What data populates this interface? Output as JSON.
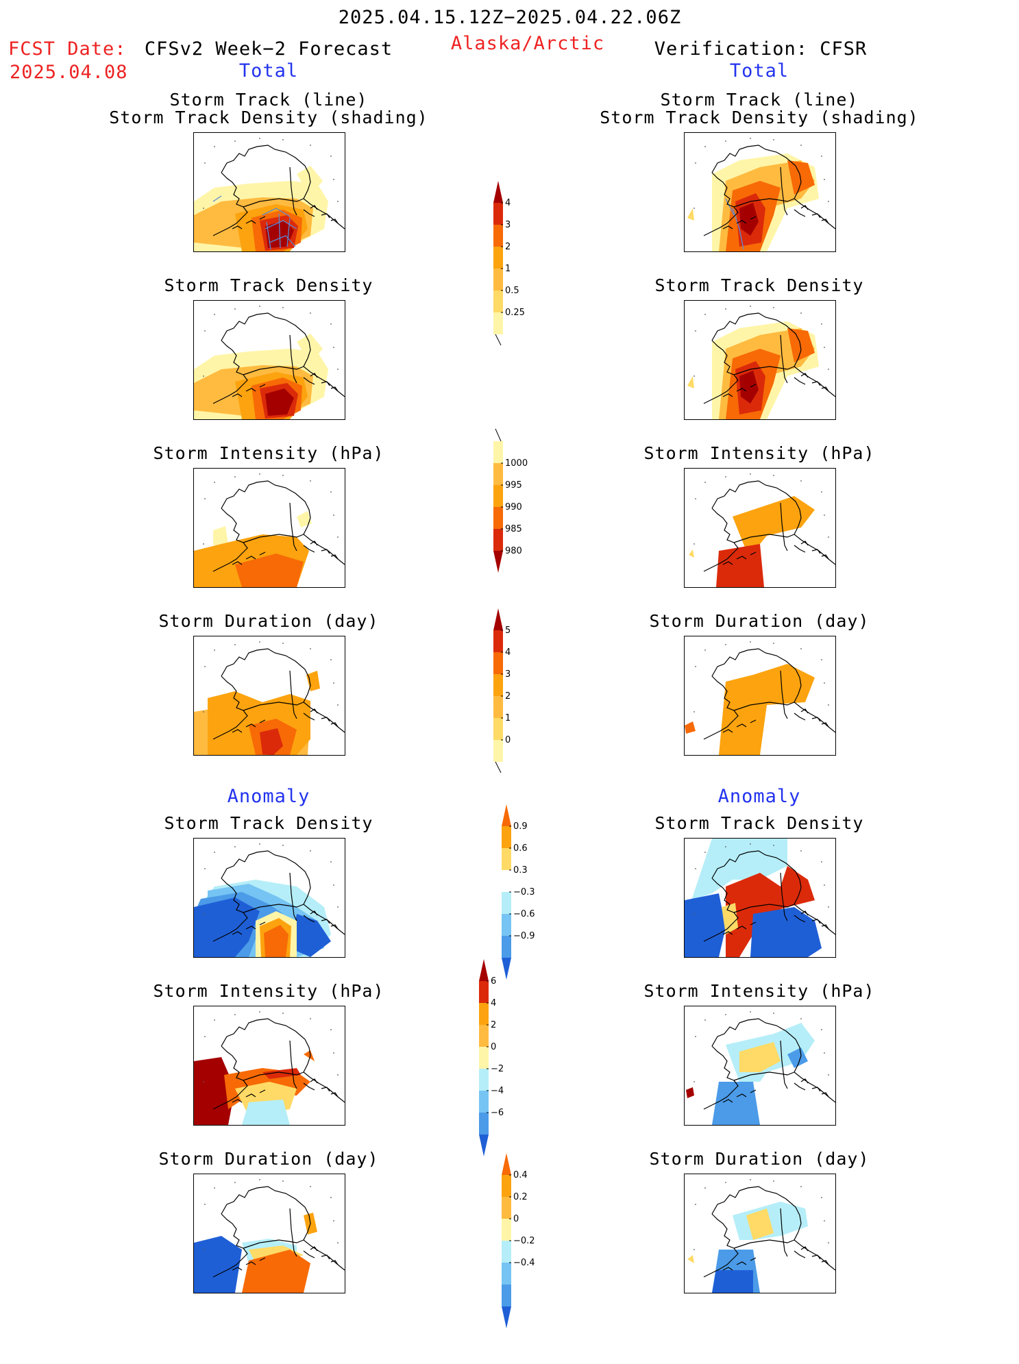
{
  "header": {
    "date_range": "2025.04.15.12Z−2025.04.22.06Z",
    "fcst_label": "FCST Date:",
    "fcst_date": "2025.04.08",
    "region": "Alaska/Arctic",
    "left_title": "CFSv2 Week−2 Forecast",
    "right_title": "Verification: CFSR",
    "left_sub": "Total",
    "right_sub": "Total",
    "left_anomaly": "Anomaly",
    "right_anomaly": "Anomaly"
  },
  "panel_titles": {
    "track_line": "Storm Track (line)",
    "track_shading": "Storm Track Density (shading)",
    "density": "Storm Track Density",
    "intensity": "Storm Intensity (hPa)",
    "duration": "Storm Duration (day)"
  },
  "colors": {
    "pale_yellow": "#fff5a8",
    "yellow": "#ffda66",
    "light_orange": "#ffbb40",
    "orange": "#fca30f",
    "dark_orange": "#f76a06",
    "red": "#db2a0a",
    "dark_red": "#a50000",
    "light_blue": "#b5eef8",
    "sky_blue": "#76c4f3",
    "mid_blue": "#4b9be8",
    "dark_blue": "#1f5fd6",
    "track_line": "#5a8ad6",
    "map_line": "#000000"
  },
  "colorbars": [
    {
      "name": "total-density-colorbar",
      "ticks": [
        "0.25",
        "0.5",
        "1",
        "2",
        "3",
        "4"
      ]
    },
    {
      "name": "total-intensity-colorbar",
      "ticks": [
        "1000",
        "995",
        "990",
        "985",
        "980"
      ]
    },
    {
      "name": "total-duration-colorbar",
      "ticks": [
        "0",
        "1",
        "2",
        "3",
        "4",
        "5"
      ]
    },
    {
      "name": "anomaly-density-colorbar",
      "ticks": [
        "0.9",
        "0.6",
        "0.3",
        "−0.3",
        "−0.6",
        "−0.9"
      ]
    },
    {
      "name": "anomaly-intensity-colorbar",
      "ticks": [
        "6",
        "4",
        "2",
        "0",
        "−2",
        "−4",
        "−6"
      ]
    },
    {
      "name": "anomaly-duration-colorbar",
      "ticks": [
        "0.4",
        "0.2",
        "0",
        "−0.2",
        "−0.4"
      ]
    }
  ]
}
